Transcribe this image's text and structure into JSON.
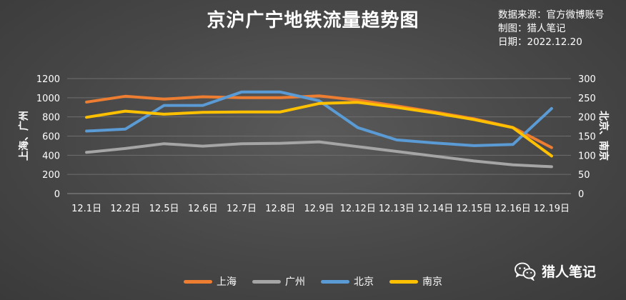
{
  "chart_data": {
    "type": "line",
    "title": "京沪广宁地铁流量趋势图",
    "notes": [
      "数据来源：官方微博账号",
      "制图：猎人笔记",
      "日期：2022.12.20"
    ],
    "ylabel_left": "上海、广州",
    "ylabel_right": "北京、南京",
    "ylim_left": [
      0,
      1200
    ],
    "ylim_right": [
      0,
      300
    ],
    "yticks_left": [
      0,
      200,
      400,
      600,
      800,
      1000,
      1200
    ],
    "yticks_right": [
      0,
      50,
      100,
      150,
      200,
      250,
      300
    ],
    "categories": [
      "12.1日",
      "12.2日",
      "12.5日",
      "12.6日",
      "12.7日",
      "12.8日",
      "12.9日",
      "12.12日",
      "12.13日",
      "12.14日",
      "12.15日",
      "12.16日",
      "12.19日"
    ],
    "series": [
      {
        "name": "上海",
        "axis": "left",
        "color": "#ED7D31",
        "values": [
          955,
          1015,
          985,
          1010,
          1000,
          1000,
          1020,
          975,
          915,
          850,
          780,
          690,
          480
        ]
      },
      {
        "name": "广州",
        "axis": "left",
        "color": "#A5A5A5",
        "values": [
          430,
          470,
          520,
          495,
          520,
          525,
          540,
          490,
          440,
          390,
          340,
          300,
          280
        ]
      },
      {
        "name": "北京",
        "axis": "right",
        "color": "#5B9BD5",
        "values": [
          163,
          168,
          230,
          230,
          265,
          265,
          242,
          172,
          140,
          132,
          125,
          128,
          222
        ]
      },
      {
        "name": "南京",
        "axis": "right",
        "color": "#FFC000",
        "values": [
          199,
          215,
          207,
          212,
          213,
          213,
          235,
          238,
          225,
          210,
          193,
          172,
          98
        ]
      }
    ],
    "grid": true,
    "legend_position": "bottom"
  },
  "watermark": {
    "text": "猎人笔记",
    "icon": "wechat-icon"
  }
}
